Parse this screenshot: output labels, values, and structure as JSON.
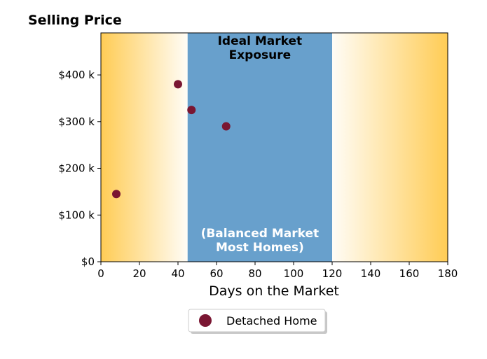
{
  "chart_data": {
    "type": "scatter",
    "title": "Selling Price",
    "xlabel": "Days on the Market",
    "ylabel": "",
    "xlim": [
      0,
      180
    ],
    "ylim": [
      0,
      490
    ],
    "x_ticks": [
      0,
      20,
      40,
      60,
      80,
      100,
      120,
      140,
      160,
      180
    ],
    "x_tick_labels": [
      "0",
      "20",
      "40",
      "60",
      "80",
      "100",
      "120",
      "140",
      "160",
      "180"
    ],
    "y_ticks": [
      0,
      100,
      200,
      300,
      400
    ],
    "y_tick_labels": [
      "$0",
      "$100 k",
      "$200 k",
      "$300 k",
      "$400 k"
    ],
    "grid": false,
    "legend_position": "bottom-center",
    "series": [
      {
        "name": "Detached Home",
        "color": "#7a1632",
        "points": [
          {
            "x": 8,
            "y": 145
          },
          {
            "x": 40,
            "y": 380
          },
          {
            "x": 47,
            "y": 325
          },
          {
            "x": 65,
            "y": 290
          }
        ]
      }
    ],
    "band": {
      "x_start": 45,
      "x_end": 120,
      "color": "#68a0cc",
      "label_top_line1": "Ideal Market",
      "label_top_line2": "Exposure",
      "label_bottom_line1": "(Balanced Market",
      "label_bottom_line2": "Most Homes)"
    },
    "background_gradient_color": "#ffcc55"
  }
}
